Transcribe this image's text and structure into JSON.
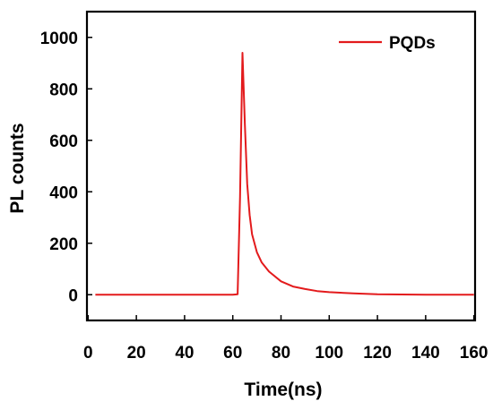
{
  "chart_data": {
    "type": "line",
    "xlabel": "Time(ns)",
    "ylabel": "PL counts",
    "xlim": [
      -0.5,
      160.5
    ],
    "ylim": [
      -100,
      1100
    ],
    "xticks": [
      0,
      20,
      40,
      60,
      80,
      100,
      120,
      140,
      160
    ],
    "yticks": [
      0,
      200,
      400,
      600,
      800,
      1000
    ],
    "legend_position": "top-right",
    "grid": false,
    "series": [
      {
        "name": "PQDs",
        "color": "#e31a1c",
        "points": [
          [
            3,
            0
          ],
          [
            20,
            0
          ],
          [
            40,
            0
          ],
          [
            56,
            0
          ],
          [
            60,
            0
          ],
          [
            62,
            2
          ],
          [
            63,
            380
          ],
          [
            64,
            940
          ],
          [
            65,
            660
          ],
          [
            66,
            430
          ],
          [
            67,
            310
          ],
          [
            68,
            235
          ],
          [
            70,
            165
          ],
          [
            72,
            125
          ],
          [
            75,
            90
          ],
          [
            80,
            52
          ],
          [
            85,
            32
          ],
          [
            90,
            22
          ],
          [
            95,
            14
          ],
          [
            100,
            10
          ],
          [
            110,
            5
          ],
          [
            120,
            2
          ],
          [
            130,
            1
          ],
          [
            140,
            0
          ],
          [
            150,
            0
          ],
          [
            160,
            0
          ]
        ]
      }
    ]
  }
}
